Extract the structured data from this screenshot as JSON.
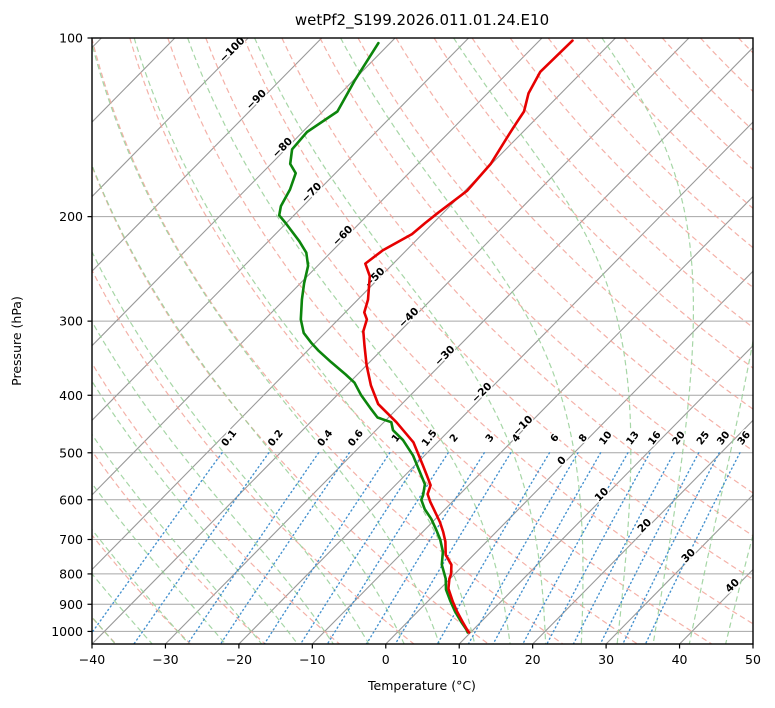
{
  "title": "wetPf2_S199.2026.011.01.24.E10",
  "axes": {
    "xlabel": "Temperature (°C)",
    "ylabel": "Pressure (hPa)",
    "x_range": [
      -40,
      50
    ],
    "p_range": [
      100,
      1050
    ],
    "x_tick_values": [
      -40,
      -30,
      -20,
      -10,
      0,
      10,
      20,
      30,
      40,
      50
    ],
    "y_tick_values": [
      100,
      200,
      300,
      400,
      500,
      600,
      700,
      800,
      900,
      1000
    ],
    "skew_degrees": 45,
    "grid": true
  },
  "background_lines": {
    "isotherm_color": "#999999",
    "pressure_grid_color": "#a6a6a6",
    "dry_adiabat_color": "#f2a399",
    "moist_adiabat_color": "#96cf96",
    "mixing_ratio_color": "#3c8ccc",
    "dry_adiabat_theta_range_c": [
      -40,
      210
    ],
    "dry_adiabat_step_k": 10,
    "moist_adiabat_start_range_c": [
      -40,
      45
    ],
    "moist_adiabat_step_c": 5,
    "mixing_ratio_values_g_kg": [
      0.1,
      0.2,
      0.4,
      0.6,
      1,
      1.5,
      2,
      3,
      4,
      6,
      8,
      10,
      13,
      16,
      20,
      25,
      30,
      36
    ],
    "mixing_ratio_p_top": 500
  },
  "isotherm_labels": [
    {
      "t": -100,
      "color": "#2277bb"
    },
    {
      "t": -90,
      "color": "#2277bb"
    },
    {
      "t": -80,
      "color": "#2277bb"
    },
    {
      "t": -70,
      "color": "#2277bb"
    },
    {
      "t": -60,
      "color": "#2277bb"
    },
    {
      "t": -50,
      "color": "#2277bb"
    },
    {
      "t": -40,
      "color": "#2277bb"
    },
    {
      "t": -30,
      "color": "#2277bb"
    },
    {
      "t": -20,
      "color": "#2277bb"
    },
    {
      "t": -10,
      "color": "#2277bb"
    },
    {
      "t": 0,
      "color": "#808080"
    },
    {
      "t": 10,
      "color": "#cc3333"
    },
    {
      "t": 20,
      "color": "#cc3333"
    },
    {
      "t": 30,
      "color": "#cc3333"
    },
    {
      "t": 40,
      "color": "#cc3333"
    }
  ],
  "chart_data": {
    "type": "line",
    "title": "wetPf2_S199.2026.011.01.24.E10",
    "xlabel": "Temperature (°C)",
    "ylabel": "Pressure (hPa)",
    "x_axis_range_c": [
      -40,
      50
    ],
    "pressure_axis_range_hpa": [
      100,
      1050
    ],
    "projection": "skew-T log-P",
    "legend": "none",
    "series": [
      {
        "name": "temperature",
        "color": "#e60000",
        "points_p_t": [
          [
            1004,
            9.8
          ],
          [
            996,
            9.3
          ],
          [
            962,
            7.4
          ],
          [
            925,
            5.3
          ],
          [
            890,
            3.4
          ],
          [
            847,
            1.1
          ],
          [
            815,
            -0.1
          ],
          [
            800,
            -0.5
          ],
          [
            772,
            -1.7
          ],
          [
            743,
            -3.8
          ],
          [
            706,
            -5.6
          ],
          [
            680,
            -7.2
          ],
          [
            654,
            -9.0
          ],
          [
            629,
            -11.0
          ],
          [
            605,
            -13.0
          ],
          [
            587,
            -14.4
          ],
          [
            567,
            -15.2
          ],
          [
            546,
            -17.0
          ],
          [
            525,
            -18.9
          ],
          [
            480,
            -23.3
          ],
          [
            444,
            -28.3
          ],
          [
            414,
            -33.2
          ],
          [
            385,
            -36.7
          ],
          [
            356,
            -40.0
          ],
          [
            330,
            -42.9
          ],
          [
            312,
            -45.0
          ],
          [
            298,
            -46.1
          ],
          [
            290,
            -47.4
          ],
          [
            276,
            -48.6
          ],
          [
            252,
            -51.5
          ],
          [
            240,
            -53.8
          ],
          [
            228,
            -53.2
          ],
          [
            214,
            -51.4
          ],
          [
            205,
            -51.1
          ],
          [
            197,
            -50.7
          ],
          [
            181,
            -49.7
          ],
          [
            163,
            -50.1
          ],
          [
            145,
            -51.6
          ],
          [
            139,
            -52.1
          ],
          [
            133,
            -52.6
          ],
          [
            124,
            -54.4
          ],
          [
            114,
            -55.7
          ],
          [
            101,
            -55.5
          ]
        ]
      },
      {
        "name": "dewpoint",
        "color": "#0c850c",
        "points_p_t": [
          [
            1004,
            9.6
          ],
          [
            992,
            9.0
          ],
          [
            962,
            7.2
          ],
          [
            926,
            5.1
          ],
          [
            890,
            3.1
          ],
          [
            850,
            0.9
          ],
          [
            815,
            -0.6
          ],
          [
            772,
            -3.0
          ],
          [
            734,
            -4.6
          ],
          [
            700,
            -6.6
          ],
          [
            672,
            -8.6
          ],
          [
            646,
            -10.6
          ],
          [
            622,
            -12.8
          ],
          [
            600,
            -14.5
          ],
          [
            589,
            -14.9
          ],
          [
            565,
            -16.1
          ],
          [
            539,
            -18.4
          ],
          [
            505,
            -21.6
          ],
          [
            476,
            -25.0
          ],
          [
            458,
            -27.7
          ],
          [
            444,
            -29.0
          ],
          [
            436,
            -31.5
          ],
          [
            422,
            -33.5
          ],
          [
            400,
            -36.7
          ],
          [
            381,
            -39.3
          ],
          [
            369,
            -41.6
          ],
          [
            352,
            -45.2
          ],
          [
            336,
            -48.6
          ],
          [
            326,
            -50.6
          ],
          [
            314,
            -52.9
          ],
          [
            298,
            -55.1
          ],
          [
            276,
            -57.6
          ],
          [
            259,
            -59.5
          ],
          [
            242,
            -61.3
          ],
          [
            230,
            -63.3
          ],
          [
            220,
            -65.8
          ],
          [
            205,
            -70.1
          ],
          [
            199,
            -72.0
          ],
          [
            192,
            -73.0
          ],
          [
            180,
            -74.0
          ],
          [
            169,
            -75.4
          ],
          [
            163,
            -77.4
          ],
          [
            154,
            -79.1
          ],
          [
            144,
            -79.4
          ],
          [
            133,
            -78.0
          ],
          [
            118,
            -79.8
          ],
          [
            102,
            -81.6
          ]
        ]
      }
    ]
  }
}
